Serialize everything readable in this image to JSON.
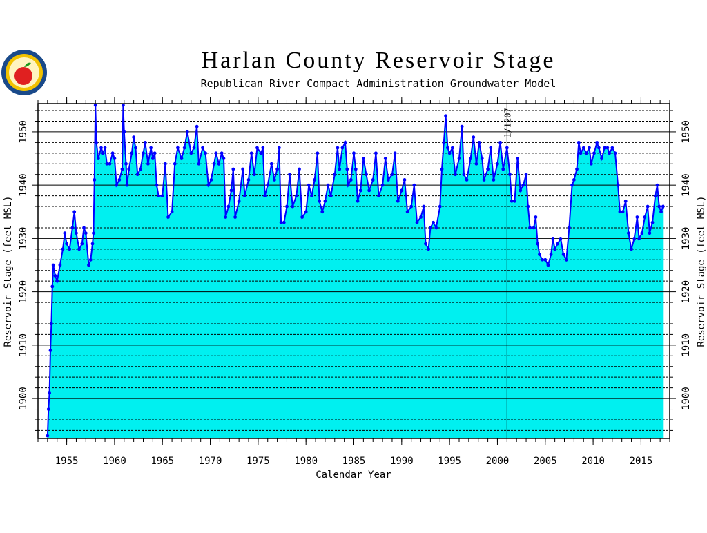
{
  "chart_data": {
    "type": "area-line",
    "title": "Harlan County Reservoir Stage",
    "subtitle": "Republican River Compact Administration Groundwater Model",
    "x_label": "Calendar Year",
    "y_label": "Reservoir Stage (feet MSL)",
    "xlim": [
      1952,
      2018
    ],
    "ylim": [
      1892.5,
      1955.3
    ],
    "xticks": [
      1955,
      1960,
      1965,
      1970,
      1975,
      1980,
      1985,
      1990,
      1995,
      2000,
      2005,
      2010,
      2015
    ],
    "yticks": [
      1900,
      1910,
      1920,
      1930,
      1940,
      1950
    ],
    "y_minor_ticks": [
      1894,
      1896,
      1898,
      1902,
      1904,
      1906,
      1908,
      1912,
      1914,
      1916,
      1918,
      1922,
      1924,
      1926,
      1928,
      1932,
      1934,
      1936,
      1938,
      1942,
      1944,
      1946,
      1948,
      1952,
      1954
    ],
    "annotation": {
      "text": "1/1207",
      "x": 2001
    },
    "grid": true,
    "fill_color": "#00f0f0",
    "line_color": "#0000ff",
    "x": [
      1953.0,
      1953.1,
      1953.2,
      1953.3,
      1953.4,
      1953.5,
      1953.6,
      1953.8,
      1954.0,
      1954.3,
      1954.6,
      1954.8,
      1955.0,
      1955.3,
      1955.6,
      1955.8,
      1956.0,
      1956.3,
      1956.6,
      1956.8,
      1957.0,
      1957.3,
      1957.5,
      1957.7,
      1957.8,
      1957.9,
      1958.0,
      1958.1,
      1958.3,
      1958.6,
      1958.8,
      1959.0,
      1959.2,
      1959.5,
      1959.8,
      1960.0,
      1960.2,
      1960.5,
      1960.8,
      1960.9,
      1961.0,
      1961.2,
      1961.3,
      1961.5,
      1961.8,
      1962.0,
      1962.2,
      1962.4,
      1962.7,
      1963.0,
      1963.2,
      1963.5,
      1963.8,
      1964.0,
      1964.2,
      1964.4,
      1964.6,
      1965.0,
      1965.3,
      1965.6,
      1966.0,
      1966.3,
      1966.6,
      1967.0,
      1967.3,
      1967.6,
      1968.0,
      1968.3,
      1968.6,
      1968.8,
      1969.2,
      1969.5,
      1969.8,
      1970.1,
      1970.4,
      1970.6,
      1970.9,
      1971.2,
      1971.4,
      1971.6,
      1971.9,
      1972.2,
      1972.4,
      1972.6,
      1973.0,
      1973.4,
      1973.6,
      1974.0,
      1974.3,
      1974.6,
      1974.9,
      1975.3,
      1975.5,
      1975.7,
      1976.0,
      1976.4,
      1976.7,
      1977.0,
      1977.2,
      1977.4,
      1977.7,
      1978.0,
      1978.3,
      1978.6,
      1979.0,
      1979.3,
      1979.6,
      1980.0,
      1980.3,
      1980.6,
      1980.9,
      1981.2,
      1981.4,
      1981.7,
      1982.0,
      1982.3,
      1982.6,
      1983.0,
      1983.3,
      1983.5,
      1983.8,
      1984.1,
      1984.3,
      1984.4,
      1984.7,
      1985.0,
      1985.2,
      1985.4,
      1985.7,
      1986.0,
      1986.3,
      1986.6,
      1987.0,
      1987.3,
      1987.6,
      1988.0,
      1988.3,
      1988.6,
      1989.0,
      1989.3,
      1989.6,
      1990.0,
      1990.3,
      1990.6,
      1991.0,
      1991.3,
      1991.6,
      1992.0,
      1992.3,
      1992.5,
      1992.8,
      1993.0,
      1993.3,
      1993.6,
      1994.0,
      1994.2,
      1994.4,
      1994.6,
      1994.8,
      1995.0,
      1995.3,
      1995.6,
      1996.0,
      1996.3,
      1996.5,
      1996.8,
      1997.2,
      1997.5,
      1997.8,
      1998.1,
      1998.4,
      1998.6,
      1999.0,
      1999.3,
      1999.6,
      2000.0,
      2000.3,
      2000.6,
      2001.0,
      2001.3,
      2001.5,
      2001.8,
      2002.1,
      2002.4,
      2002.7,
      2003.0,
      2003.2,
      2003.4,
      2003.8,
      2004.0,
      2004.2,
      2004.4,
      2004.7,
      2005.0,
      2005.3,
      2005.6,
      2005.8,
      2006.0,
      2006.3,
      2006.6,
      2006.9,
      2007.2,
      2007.5,
      2007.8,
      2008.0,
      2008.3,
      2008.5,
      2008.7,
      2009.0,
      2009.3,
      2009.6,
      2009.8,
      2010.1,
      2010.4,
      2010.6,
      2010.9,
      2011.2,
      2011.5,
      2011.7,
      2012.0,
      2012.3,
      2012.6,
      2012.8,
      2013.1,
      2013.4,
      2013.7,
      2014.0,
      2014.3,
      2014.6,
      2014.8,
      2015.1,
      2015.4,
      2015.7,
      2015.9,
      2016.2,
      2016.5,
      2016.7,
      2016.9,
      2017.1,
      2017.3
    ],
    "values": [
      1893,
      1898,
      1901,
      1909,
      1914,
      1921,
      1925,
      1923,
      1922,
      1925,
      1928,
      1931,
      1929,
      1928,
      1932,
      1935,
      1931,
      1928,
      1929,
      1932,
      1931,
      1925,
      1926,
      1929,
      1931,
      1941,
      1955,
      1948,
      1945,
      1947,
      1946,
      1947,
      1944,
      1944,
      1946,
      1945,
      1940,
      1941,
      1943,
      1955,
      1950,
      1944,
      1940,
      1943,
      1946,
      1949,
      1947,
      1942,
      1943,
      1946,
      1948,
      1944,
      1947,
      1945,
      1946,
      1940,
      1938,
      1938,
      1944,
      1934,
      1935,
      1944,
      1947,
      1945,
      1947,
      1950,
      1946,
      1947,
      1951,
      1944,
      1947,
      1946,
      1940,
      1941,
      1944,
      1946,
      1944,
      1946,
      1945,
      1934,
      1936,
      1939,
      1943,
      1934,
      1937,
      1943,
      1938,
      1941,
      1946,
      1942,
      1947,
      1946,
      1947,
      1938,
      1940,
      1944,
      1941,
      1943,
      1947,
      1933,
      1933,
      1936,
      1942,
      1936,
      1938,
      1943,
      1934,
      1935,
      1940,
      1938,
      1941,
      1946,
      1937,
      1935,
      1937,
      1940,
      1938,
      1942,
      1947,
      1943,
      1947,
      1948,
      1943,
      1940,
      1941,
      1946,
      1943,
      1937,
      1939,
      1945,
      1942,
      1939,
      1941,
      1946,
      1938,
      1940,
      1945,
      1941,
      1942,
      1946,
      1937,
      1939,
      1941,
      1935,
      1936,
      1940,
      1933,
      1934,
      1936,
      1929,
      1928,
      1932,
      1933,
      1932,
      1936,
      1943,
      1948,
      1953,
      1947,
      1946,
      1947,
      1942,
      1945,
      1951,
      1942,
      1941,
      1945,
      1949,
      1944,
      1948,
      1945,
      1941,
      1943,
      1947,
      1941,
      1944,
      1948,
      1943,
      1947,
      1942,
      1937,
      1937,
      1945,
      1939,
      1940,
      1942,
      1936,
      1932,
      1932,
      1934,
      1929,
      1927,
      1926,
      1926,
      1925,
      1927,
      1930,
      1928,
      1929,
      1930,
      1927,
      1926,
      1932,
      1940,
      1941,
      1943,
      1948,
      1946,
      1947,
      1946,
      1947,
      1944,
      1946,
      1948,
      1947,
      1945,
      1947,
      1947,
      1946,
      1947,
      1946,
      1940,
      1935,
      1935,
      1937,
      1931,
      1928,
      1930,
      1934,
      1930,
      1931,
      1934,
      1936,
      1931,
      1933,
      1938,
      1940,
      1936,
      1935,
      1936
    ]
  }
}
